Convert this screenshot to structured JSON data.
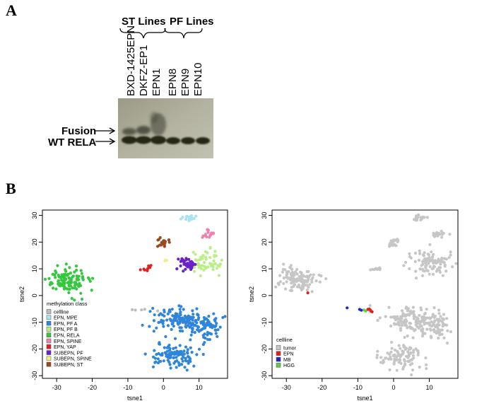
{
  "panel_a": {
    "label": "A",
    "group_labels": [
      "ST Lines",
      "PF Lines"
    ],
    "lane_labels": [
      "BXD-1425EPN",
      "DKFZ-EP1",
      "EPN1",
      "EPN8",
      "EPN9",
      "EPN10"
    ],
    "band_labels": [
      "Fusion",
      "WT RELA"
    ]
  },
  "panel_b": {
    "label": "B"
  },
  "chart_data": [
    {
      "type": "scatter",
      "title": "",
      "xlabel": "tsne1",
      "ylabel": "tsne2",
      "xlim": [
        -34,
        18
      ],
      "ylim": [
        -31,
        32
      ],
      "xticks": [
        -30,
        -20,
        -10,
        0,
        10
      ],
      "yticks": [
        -30,
        -20,
        -10,
        0,
        10,
        20,
        30
      ],
      "legend_title": "methylation class",
      "series": [
        {
          "name": "cellline",
          "color": "#bcbcbc",
          "clusters": [
            {
              "cx": -9,
              "cy": -5.5,
              "sx": 2.6,
              "sy": 0.4,
              "n": 5
            }
          ]
        },
        {
          "name": "EPN, MPE",
          "color": "#a8e4f2",
          "clusters": [
            {
              "cx": 7.5,
              "cy": 29.2,
              "sx": 1.2,
              "sy": 0.6,
              "n": 16
            }
          ]
        },
        {
          "name": "EPN, PF A",
          "color": "#2f86d8",
          "clusters": [
            {
              "cx": 6,
              "cy": -9,
              "sx": 4.5,
              "sy": 2.3,
              "n": 150
            },
            {
              "cx": 12,
              "cy": -13,
              "sx": 2.3,
              "sy": 2.3,
              "n": 50
            },
            {
              "cx": 2.5,
              "cy": -23,
              "sx": 3.2,
              "sy": 2.3,
              "n": 100
            }
          ]
        },
        {
          "name": "EPN, PF B",
          "color": "#b9ef86",
          "clusters": [
            {
              "cx": 12,
              "cy": 12,
              "sx": 2.2,
              "sy": 2.4,
              "n": 55
            }
          ]
        },
        {
          "name": "EPN, RELA",
          "color": "#34c83e",
          "clusters": [
            {
              "cx": -27,
              "cy": 6,
              "sx": 2.8,
              "sy": 2.3,
              "n": 120
            }
          ]
        },
        {
          "name": "EPN, SPINE",
          "color": "#ee80b2",
          "clusters": [
            {
              "cx": 12.5,
              "cy": 23,
              "sx": 1.0,
              "sy": 0.8,
              "n": 16
            }
          ]
        },
        {
          "name": "EPN, YAP",
          "color": "#e02020",
          "clusters": [
            {
              "cx": -5,
              "cy": 10,
              "sx": 0.8,
              "sy": 0.5,
              "n": 9
            }
          ]
        },
        {
          "name": "SUBEPN, PF",
          "color": "#6a21c8",
          "clusters": [
            {
              "cx": 6.5,
              "cy": 12,
              "sx": 1.1,
              "sy": 1.3,
              "n": 40
            }
          ]
        },
        {
          "name": "SUBEPN, SPINE",
          "color": "#f3ee92",
          "clusters": [
            {
              "cx": 0.5,
              "cy": 13.5,
              "sx": 0.3,
              "sy": 0.4,
              "n": 3
            }
          ]
        },
        {
          "name": "SUBEPN, ST",
          "color": "#9b4a1d",
          "clusters": [
            {
              "cx": 0,
              "cy": 20,
              "sx": 0.8,
              "sy": 0.8,
              "n": 22
            }
          ]
        }
      ]
    },
    {
      "type": "scatter",
      "title": "",
      "xlabel": "tsne1",
      "ylabel": "tsne2",
      "xlim": [
        -34,
        18
      ],
      "ylim": [
        -31,
        32
      ],
      "xticks": [
        -30,
        -20,
        -10,
        0,
        10
      ],
      "yticks": [
        -30,
        -20,
        -10,
        0,
        10,
        20,
        30
      ],
      "legend_title": "cellline",
      "series": [
        {
          "name": "tumor",
          "color": "#c6c6c6",
          "clusters": [
            {
              "cx": 7.5,
              "cy": 29.2,
              "sx": 1.2,
              "sy": 0.6,
              "n": 16
            },
            {
              "cx": 12.5,
              "cy": 23,
              "sx": 1.0,
              "sy": 0.8,
              "n": 16
            },
            {
              "cx": 0,
              "cy": 20,
              "sx": 0.8,
              "sy": 0.8,
              "n": 22
            },
            {
              "cx": 10,
              "cy": 12,
              "sx": 3.2,
              "sy": 2.4,
              "n": 95
            },
            {
              "cx": -5,
              "cy": 10,
              "sx": 0.8,
              "sy": 0.5,
              "n": 9
            },
            {
              "cx": -27,
              "cy": 6,
              "sx": 2.8,
              "sy": 2.3,
              "n": 120
            },
            {
              "cx": 6,
              "cy": -9,
              "sx": 4.5,
              "sy": 2.3,
              "n": 150
            },
            {
              "cx": 12,
              "cy": -13,
              "sx": 2.3,
              "sy": 2.3,
              "n": 50
            },
            {
              "cx": 2.5,
              "cy": -23,
              "sx": 3.2,
              "sy": 2.3,
              "n": 100
            }
          ]
        },
        {
          "name": "EPN",
          "color": "#e02020",
          "points": [
            [
              -24,
              1
            ],
            [
              -6.5,
              -5.4
            ],
            [
              -6.3,
              -5.9
            ],
            [
              -6.8,
              -5.0
            ],
            [
              -7.2,
              -5.2
            ],
            [
              -6.0,
              -6.1
            ]
          ]
        },
        {
          "name": "MB",
          "color": "#2222c8",
          "points": [
            [
              -13,
              -4.6
            ],
            [
              -9.5,
              -5.2
            ],
            [
              -9.0,
              -5.5
            ]
          ]
        },
        {
          "name": "HGG",
          "color": "#55d040",
          "points": [
            [
              -8.3,
              -5.4
            ],
            [
              -7.8,
              -5.8
            ]
          ]
        }
      ]
    }
  ]
}
